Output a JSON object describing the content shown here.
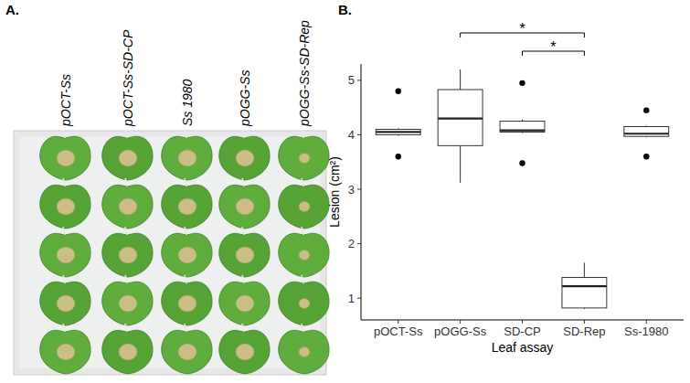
{
  "panel_a": {
    "letter": "A.",
    "labels": [
      "pOCT-Ss",
      "pOCT-Ss-SD-CP",
      "Ss 1980",
      "pOGG-Ss",
      "pOGG-Ss-SD-Rep"
    ]
  },
  "chart_data": {
    "type": "box",
    "letter": "B.",
    "x_label": "Leaf assay",
    "y_label": "Lesion (cm²)",
    "categories": [
      "pOCT-Ss",
      "pOGG-Ss",
      "SD-CP",
      "SD-Rep",
      "Ss-1980"
    ],
    "boxes": [
      {
        "whisker_low": 3.98,
        "q1": 4.0,
        "median": 4.05,
        "q3": 4.1,
        "whisker_high": 4.12,
        "outliers": [
          4.8,
          3.6
        ]
      },
      {
        "whisker_low": 3.12,
        "q1": 3.8,
        "median": 4.3,
        "q3": 4.83,
        "whisker_high": 5.2,
        "outliers": []
      },
      {
        "whisker_low": 4.03,
        "q1": 4.05,
        "median": 4.08,
        "q3": 4.25,
        "whisker_high": 4.28,
        "outliers": [
          4.95,
          3.48
        ]
      },
      {
        "whisker_low": 0.8,
        "q1": 0.82,
        "median": 1.22,
        "q3": 1.38,
        "whisker_high": 1.65,
        "outliers": []
      },
      {
        "whisker_low": 3.95,
        "q1": 3.97,
        "median": 4.02,
        "q3": 4.15,
        "whisker_high": 4.17,
        "outliers": [
          4.45,
          3.6
        ]
      }
    ],
    "annotations": [
      {
        "from": "pOGG-Ss",
        "to": "SD-Rep",
        "label": "*"
      },
      {
        "from": "SD-CP",
        "to": "SD-Rep",
        "label": "*"
      }
    ],
    "ylim": [
      0.6,
      5.3
    ],
    "yticks": [
      1,
      2,
      3,
      4,
      5
    ],
    "grid": false
  }
}
